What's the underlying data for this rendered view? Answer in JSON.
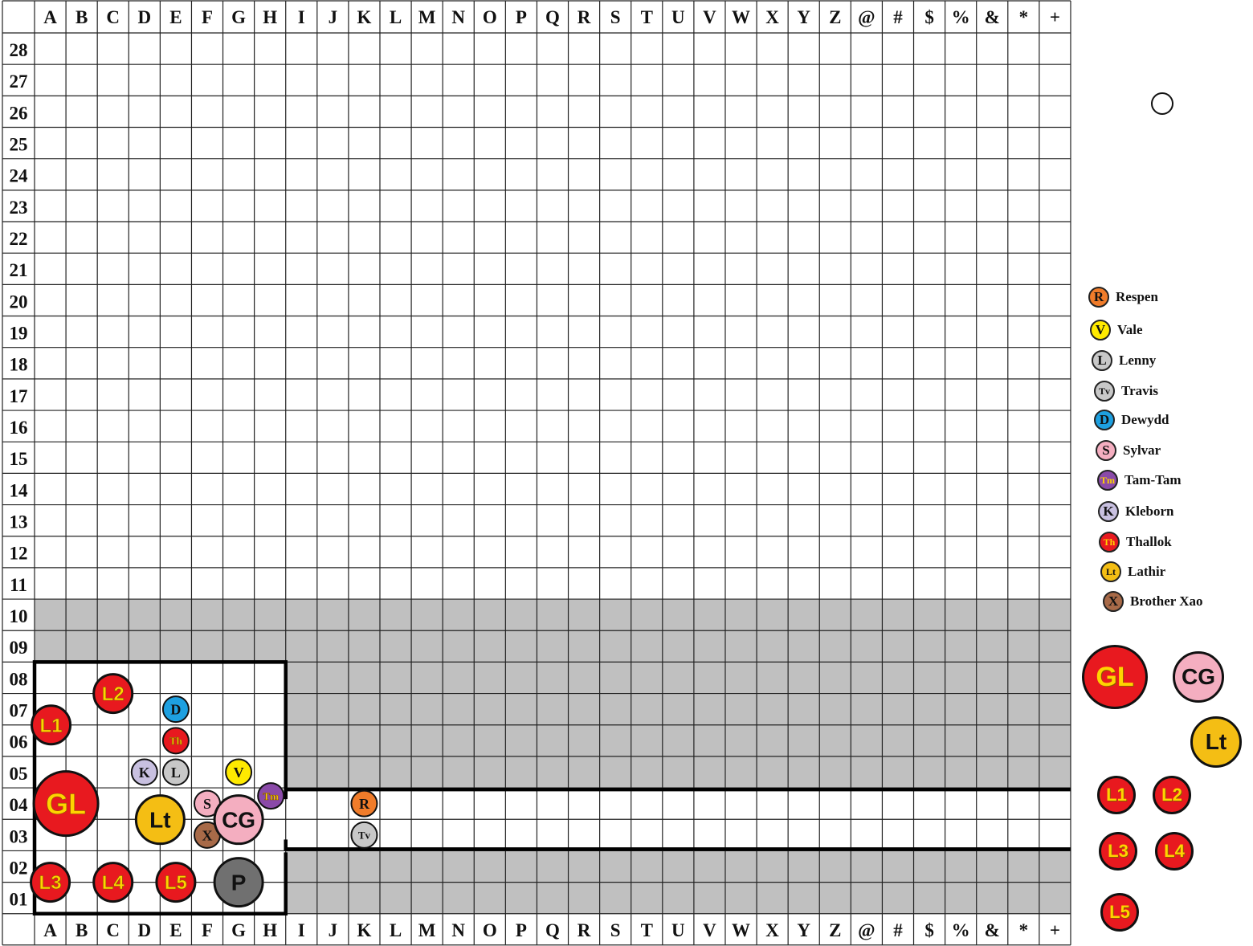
{
  "board": {
    "columns": [
      "A",
      "B",
      "C",
      "D",
      "E",
      "F",
      "G",
      "H",
      "I",
      "J",
      "K",
      "L",
      "M",
      "N",
      "O",
      "P",
      "Q",
      "R",
      "S",
      "T",
      "U",
      "V",
      "W",
      "X",
      "Y",
      "Z",
      "@",
      "#",
      "$",
      "%",
      "&",
      "*",
      "+"
    ],
    "rows": [
      "28",
      "27",
      "26",
      "25",
      "24",
      "23",
      "22",
      "21",
      "20",
      "19",
      "18",
      "17",
      "16",
      "15",
      "14",
      "13",
      "12",
      "11",
      "10",
      "09",
      "08",
      "07",
      "06",
      "05",
      "04",
      "03",
      "02",
      "01"
    ]
  },
  "colors": {
    "shade": "#c0c0c0",
    "red": "#e8191f",
    "gold_text": "#ffd400",
    "orange": "#f07c2a",
    "yellow": "#ffea00",
    "grey": "#c8c8c8",
    "blue": "#1ea0e0",
    "pink": "#f4aec0",
    "purple": "#8a4aa8",
    "lavender": "#c8c0e0",
    "amber": "#f4be14",
    "brown": "#a86a48",
    "dark": "#707070"
  },
  "tokens": [
    {
      "label": "L2",
      "col": "C",
      "row": "07",
      "kind": "leader"
    },
    {
      "label": "L1",
      "col": "A",
      "row": "06",
      "kind": "leader"
    },
    {
      "label": "D",
      "col": "E",
      "row": "07",
      "kind": "small",
      "fill": "#1ea0e0",
      "text": "#111"
    },
    {
      "label": "Th",
      "col": "E",
      "row": "06",
      "kind": "small",
      "fill": "#e8191f",
      "text": "#ffd400"
    },
    {
      "label": "K",
      "col": "D",
      "row": "05",
      "kind": "small",
      "fill": "#c8c0e0",
      "text": "#111"
    },
    {
      "label": "L",
      "col": "E",
      "row": "05",
      "kind": "small",
      "fill": "#c8c8c8",
      "text": "#111"
    },
    {
      "label": "V",
      "col": "G",
      "row": "05",
      "kind": "small",
      "fill": "#ffea00",
      "text": "#111"
    },
    {
      "label": "Tm",
      "col": "H",
      "row": "04",
      "kind": "small",
      "fill": "#8a4aa8",
      "text": "#ffd400"
    },
    {
      "label": "GL",
      "col": "B",
      "row": "04",
      "kind": "huge",
      "fill": "#e8191f",
      "text": "#ffd400"
    },
    {
      "label": "Lt",
      "col": "E",
      "row": "04",
      "kind": "big",
      "fill": "#f4be14",
      "text": "#111"
    },
    {
      "label": "S",
      "col": "F",
      "row": "04",
      "kind": "small",
      "fill": "#f4aec0",
      "text": "#111"
    },
    {
      "label": "X",
      "col": "F",
      "row": "03",
      "kind": "small",
      "fill": "#a86a48",
      "text": "#111"
    },
    {
      "label": "CG",
      "col": "G",
      "row": "04",
      "kind": "big",
      "fill": "#f4aec0",
      "text": "#111"
    },
    {
      "label": "R",
      "col": "K",
      "row": "04",
      "kind": "small",
      "fill": "#f07c2a",
      "text": "#111"
    },
    {
      "label": "Tv",
      "col": "K",
      "row": "03",
      "kind": "small",
      "fill": "#c8c8c8",
      "text": "#111"
    },
    {
      "label": "L3",
      "col": "A",
      "row": "02",
      "kind": "leader"
    },
    {
      "label": "L4",
      "col": "C",
      "row": "02",
      "kind": "leader"
    },
    {
      "label": "L5",
      "col": "E",
      "row": "02",
      "kind": "leader"
    },
    {
      "label": "P",
      "col": "G",
      "row": "02",
      "kind": "big",
      "fill": "#707070",
      "text": "#111"
    }
  ],
  "legend": [
    {
      "abbr": "R",
      "name": "Respen",
      "fill": "#f07c2a",
      "text": "#111"
    },
    {
      "abbr": "V",
      "name": "Vale",
      "fill": "#ffea00",
      "text": "#111"
    },
    {
      "abbr": "L",
      "name": "Lenny",
      "fill": "#c8c8c8",
      "text": "#111"
    },
    {
      "abbr": "Tv",
      "name": "Travis",
      "fill": "#c8c8c8",
      "text": "#111"
    },
    {
      "abbr": "D",
      "name": "Dewydd",
      "fill": "#1ea0e0",
      "text": "#111"
    },
    {
      "abbr": "S",
      "name": "Sylvar",
      "fill": "#f4aec0",
      "text": "#111"
    },
    {
      "abbr": "Tm",
      "name": "Tam-Tam",
      "fill": "#8a4aa8",
      "text": "#ffd400"
    },
    {
      "abbr": "K",
      "name": "Kleborn",
      "fill": "#c8c0e0",
      "text": "#111"
    },
    {
      "abbr": "Th",
      "name": "Thallok",
      "fill": "#e8191f",
      "text": "#ffd400"
    },
    {
      "abbr": "Lt",
      "name": "Lathir",
      "fill": "#f4be14",
      "text": "#111"
    },
    {
      "abbr": "X",
      "name": "Brother Xao",
      "fill": "#a86a48",
      "text": "#111"
    }
  ],
  "reserve": {
    "gl": "GL",
    "cg": "CG",
    "lt": "Lt",
    "l1": "L1",
    "l2": "L2",
    "l3": "L3",
    "l4": "L4",
    "l5": "L5"
  }
}
